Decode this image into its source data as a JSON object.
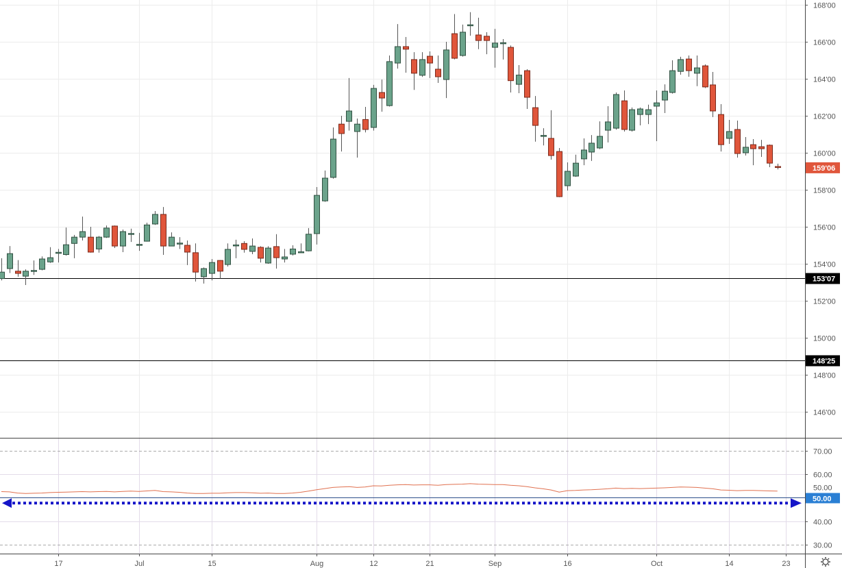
{
  "chart_data": {
    "type": "candlestick",
    "price_axis": {
      "range": [
        144.6,
        168.2
      ],
      "ticks": [
        {
          "value": 168,
          "label": "168'00"
        },
        {
          "value": 166,
          "label": "166'00"
        },
        {
          "value": 164,
          "label": "164'00"
        },
        {
          "value": 162,
          "label": "162'00"
        },
        {
          "value": 160,
          "label": "160'00"
        },
        {
          "value": 158,
          "label": "158'00"
        },
        {
          "value": 156,
          "label": "156'00"
        },
        {
          "value": 154,
          "label": "154'00"
        },
        {
          "value": 152,
          "label": "152'00"
        },
        {
          "value": 150,
          "label": "150'00"
        },
        {
          "value": 148,
          "label": "148'00"
        },
        {
          "value": 146,
          "label": "146'00"
        }
      ],
      "grid": true
    },
    "last_price": {
      "value": 159.19,
      "label": "159'06",
      "color": "#e0563b"
    },
    "horizontal_lines": [
      {
        "value": 153.22,
        "label": "153'07",
        "color": "#000000"
      },
      {
        "value": 148.78,
        "label": "148'25",
        "color": "#000000"
      }
    ],
    "x_ticks": [
      {
        "date": "2019-06-17",
        "label": "17"
      },
      {
        "date": "2019-07-01",
        "label": "Jul"
      },
      {
        "date": "2019-07-15",
        "label": "15"
      },
      {
        "date": "2019-08-01",
        "label": "Aug"
      },
      {
        "date": "2019-08-12",
        "label": "12"
      },
      {
        "date": "2019-08-21",
        "label": "21"
      },
      {
        "date": "2019-09-03",
        "label": "Sep"
      },
      {
        "date": "2019-09-16",
        "label": "16"
      },
      {
        "date": "2019-10-01",
        "label": "Oct"
      },
      {
        "date": "2019-10-14",
        "label": "14"
      },
      {
        "date": "2019-10-23",
        "label": "23"
      }
    ],
    "colors": {
      "up": "#6ba38b",
      "down": "#e0563b",
      "up_border": "#2f4f40",
      "down_border": "#7a2a1c"
    },
    "candles_columns": [
      "date",
      "open",
      "high",
      "low",
      "close"
    ],
    "candles": [
      [
        "2019-06-06",
        153.2,
        154.3,
        153.1,
        153.55
      ],
      [
        "2019-06-07",
        153.74,
        154.96,
        153.5,
        154.55
      ],
      [
        "2019-06-10",
        153.6,
        154.2,
        153.3,
        153.48
      ],
      [
        "2019-06-11",
        153.33,
        153.7,
        152.85,
        153.6
      ],
      [
        "2019-06-12",
        153.62,
        154.18,
        153.4,
        153.64
      ],
      [
        "2019-06-13",
        153.7,
        154.4,
        153.65,
        154.26
      ],
      [
        "2019-06-14",
        154.1,
        154.9,
        154.05,
        154.33
      ],
      [
        "2019-06-17",
        154.6,
        154.8,
        154.07,
        154.62
      ],
      [
        "2019-06-18",
        154.5,
        155.96,
        154.44,
        155.03
      ],
      [
        "2019-06-19",
        155.1,
        155.56,
        154.3,
        155.44
      ],
      [
        "2019-06-20",
        155.44,
        156.55,
        155.26,
        155.74
      ],
      [
        "2019-06-21",
        155.44,
        156.0,
        154.6,
        154.63
      ],
      [
        "2019-06-24",
        154.8,
        155.5,
        154.6,
        155.44
      ],
      [
        "2019-06-25",
        155.44,
        156.07,
        155.4,
        155.93
      ],
      [
        "2019-06-26",
        156.04,
        156.07,
        154.85,
        154.96
      ],
      [
        "2019-06-27",
        154.96,
        155.85,
        154.63,
        155.74
      ],
      [
        "2019-06-28",
        155.62,
        155.9,
        155.18,
        155.64
      ],
      [
        "2019-07-01",
        155.04,
        155.67,
        154.7,
        155.05
      ],
      [
        "2019-07-02",
        155.22,
        156.22,
        155.2,
        156.1
      ],
      [
        "2019-07-03",
        156.15,
        156.85,
        156.1,
        156.67
      ],
      [
        "2019-07-05",
        156.67,
        157.07,
        154.48,
        154.96
      ],
      [
        "2019-07-08",
        154.96,
        155.7,
        154.95,
        155.44
      ],
      [
        "2019-07-09",
        155.1,
        155.44,
        154.8,
        155.12
      ],
      [
        "2019-07-10",
        155.0,
        155.26,
        153.93,
        154.63
      ],
      [
        "2019-07-11",
        154.6,
        155.1,
        153.04,
        153.55
      ],
      [
        "2019-07-12",
        153.3,
        153.8,
        152.93,
        153.74
      ],
      [
        "2019-07-15",
        153.48,
        154.26,
        153.1,
        154.07
      ],
      [
        "2019-07-16",
        154.18,
        154.2,
        153.2,
        153.6
      ],
      [
        "2019-07-17",
        153.96,
        155.1,
        153.85,
        154.78
      ],
      [
        "2019-07-18",
        155.0,
        155.3,
        154.3,
        155.02
      ],
      [
        "2019-07-19",
        155.1,
        155.22,
        154.6,
        154.78
      ],
      [
        "2019-07-22",
        154.67,
        155.37,
        154.52,
        154.96
      ],
      [
        "2019-07-23",
        154.89,
        154.95,
        154.07,
        154.3
      ],
      [
        "2019-07-24",
        154.04,
        154.95,
        154.0,
        154.85
      ],
      [
        "2019-07-25",
        154.93,
        155.6,
        153.74,
        154.33
      ],
      [
        "2019-07-26",
        154.26,
        154.8,
        154.07,
        154.37
      ],
      [
        "2019-07-29",
        154.52,
        155.0,
        154.45,
        154.8
      ],
      [
        "2019-07-30",
        154.62,
        155.1,
        154.6,
        154.65
      ],
      [
        "2019-07-31",
        154.7,
        155.93,
        154.67,
        155.6
      ],
      [
        "2019-08-01",
        155.63,
        158.15,
        155.04,
        157.7
      ],
      [
        "2019-08-02",
        157.4,
        159.04,
        157.35,
        158.63
      ],
      [
        "2019-08-05",
        158.67,
        161.37,
        158.6,
        160.74
      ],
      [
        "2019-08-06",
        161.55,
        162.0,
        160.07,
        161.04
      ],
      [
        "2019-08-07",
        161.7,
        164.04,
        161.2,
        162.26
      ],
      [
        "2019-08-08",
        161.15,
        161.85,
        159.74,
        161.55
      ],
      [
        "2019-08-09",
        161.8,
        162.48,
        161.1,
        161.26
      ],
      [
        "2019-08-12",
        161.37,
        163.67,
        161.2,
        163.48
      ],
      [
        "2019-08-13",
        163.26,
        163.96,
        162.22,
        162.96
      ],
      [
        "2019-08-14",
        162.55,
        165.26,
        162.5,
        164.93
      ],
      [
        "2019-08-15",
        164.85,
        166.96,
        164.55,
        165.74
      ],
      [
        "2019-08-16",
        165.74,
        166.26,
        164.33,
        165.6
      ],
      [
        "2019-08-19",
        165.04,
        165.44,
        163.4,
        164.3
      ],
      [
        "2019-08-20",
        164.19,
        165.44,
        164.1,
        165.04
      ],
      [
        "2019-08-21",
        165.22,
        165.48,
        164.04,
        164.85
      ],
      [
        "2019-08-22",
        164.52,
        165.26,
        163.78,
        164.11
      ],
      [
        "2019-08-23",
        163.96,
        166.0,
        162.96,
        165.56
      ],
      [
        "2019-08-26",
        166.44,
        167.5,
        165.05,
        165.11
      ],
      [
        "2019-08-27",
        165.26,
        166.93,
        165.2,
        166.52
      ],
      [
        "2019-08-28",
        166.88,
        167.6,
        166.33,
        166.92
      ],
      [
        "2019-08-29",
        166.37,
        167.3,
        165.6,
        166.07
      ],
      [
        "2019-08-30",
        166.3,
        166.52,
        165.33,
        166.07
      ],
      [
        "2019-09-03",
        165.7,
        166.7,
        164.6,
        165.93
      ],
      [
        "2019-09-04",
        165.9,
        166.15,
        165.04,
        165.95
      ],
      [
        "2019-09-05",
        165.7,
        165.8,
        163.26,
        163.9
      ],
      [
        "2019-09-06",
        163.7,
        164.74,
        163.22,
        164.2
      ],
      [
        "2019-09-09",
        164.44,
        164.52,
        162.37,
        163.0
      ],
      [
        "2019-09-10",
        162.44,
        163.07,
        160.6,
        161.48
      ],
      [
        "2019-09-11",
        160.92,
        161.33,
        160.4,
        160.94
      ],
      [
        "2019-09-12",
        160.78,
        162.3,
        159.63,
        159.85
      ],
      [
        "2019-09-13",
        160.07,
        160.26,
        157.6,
        157.63
      ],
      [
        "2019-09-16",
        158.22,
        159.48,
        157.96,
        159.0
      ],
      [
        "2019-09-17",
        158.74,
        159.9,
        158.7,
        159.44
      ],
      [
        "2019-09-18",
        159.67,
        160.78,
        159.33,
        160.15
      ],
      [
        "2019-09-19",
        160.04,
        160.96,
        159.56,
        160.52
      ],
      [
        "2019-09-20",
        160.26,
        161.7,
        160.2,
        160.89
      ],
      [
        "2019-09-23",
        161.22,
        162.52,
        160.56,
        161.67
      ],
      [
        "2019-09-24",
        161.33,
        163.26,
        161.25,
        163.15
      ],
      [
        "2019-09-25",
        162.81,
        163.37,
        161.15,
        161.26
      ],
      [
        "2019-09-26",
        161.22,
        162.45,
        161.15,
        162.33
      ],
      [
        "2019-09-27",
        162.07,
        162.45,
        161.48,
        162.37
      ],
      [
        "2019-09-30",
        162.07,
        162.6,
        161.55,
        162.33
      ],
      [
        "2019-10-01",
        162.52,
        163.37,
        160.63,
        162.7
      ],
      [
        "2019-10-02",
        162.85,
        163.7,
        162.15,
        163.33
      ],
      [
        "2019-10-03",
        163.26,
        165.0,
        163.2,
        164.44
      ],
      [
        "2019-10-04",
        164.4,
        165.19,
        164.22,
        165.04
      ],
      [
        "2019-10-07",
        165.07,
        165.26,
        164.11,
        164.44
      ],
      [
        "2019-10-08",
        164.3,
        165.26,
        163.6,
        164.59
      ],
      [
        "2019-10-09",
        164.7,
        164.78,
        163.5,
        163.56
      ],
      [
        "2019-10-10",
        163.67,
        164.37,
        161.93,
        162.26
      ],
      [
        "2019-10-11",
        162.07,
        162.63,
        160.07,
        160.44
      ],
      [
        "2019-10-14",
        160.78,
        161.78,
        160.48,
        161.15
      ],
      [
        "2019-10-15",
        161.26,
        161.74,
        159.74,
        159.96
      ],
      [
        "2019-10-16",
        160.0,
        160.85,
        159.85,
        160.3
      ],
      [
        "2019-10-17",
        160.44,
        160.74,
        159.33,
        160.22
      ],
      [
        "2019-10-18",
        160.33,
        160.7,
        159.78,
        160.22
      ],
      [
        "2019-10-21",
        160.41,
        160.45,
        159.22,
        159.44
      ],
      [
        "2019-10-22",
        159.26,
        159.41,
        159.1,
        159.22
      ]
    ],
    "rsi": {
      "range": [
        25,
        75
      ],
      "band": [
        30,
        70
      ],
      "band_color": "#f3e6fc",
      "line_color": "#e0704f",
      "ticks": [
        {
          "value": 70,
          "label": "70.00"
        },
        {
          "value": 60,
          "label": "60.00"
        },
        {
          "value": 50,
          "label": "50.00"
        },
        {
          "value": 40,
          "label": "40.00"
        },
        {
          "value": 30,
          "label": "30.00"
        }
      ],
      "highlight": {
        "value": 50,
        "label": "50.00",
        "color": "#2a7fd4"
      },
      "arrow_line": {
        "value": 47.7,
        "color": "#1515c8"
      },
      "values": [
        52.6,
        52.5,
        52.0,
        51.8,
        51.9,
        52.0,
        52.2,
        52.3,
        52.4,
        52.5,
        52.6,
        52.5,
        52.6,
        52.7,
        52.5,
        52.7,
        52.8,
        52.7,
        52.9,
        53.1,
        52.6,
        52.5,
        52.3,
        52.0,
        51.8,
        51.8,
        51.9,
        51.9,
        52.1,
        52.2,
        52.2,
        52.1,
        51.9,
        52.0,
        51.8,
        51.8,
        52.0,
        52.3,
        52.8,
        53.4,
        53.9,
        54.4,
        54.6,
        54.7,
        54.4,
        54.6,
        55.1,
        55.0,
        55.3,
        55.5,
        55.6,
        55.4,
        55.5,
        55.5,
        55.3,
        55.6,
        55.7,
        55.8,
        56.0,
        55.8,
        55.7,
        55.6,
        55.6,
        55.3,
        55.1,
        54.7,
        54.2,
        53.8,
        53.3,
        52.4,
        53.0,
        53.1,
        53.3,
        53.4,
        53.6,
        53.8,
        54.1,
        53.9,
        54.0,
        53.9,
        54.0,
        54.1,
        54.2,
        54.4,
        54.6,
        54.5,
        54.4,
        54.1,
        53.8,
        53.3,
        53.2,
        53.0,
        53.1,
        53.1,
        53.0,
        52.9,
        52.8
      ]
    }
  },
  "settings_icon": "gear-icon"
}
